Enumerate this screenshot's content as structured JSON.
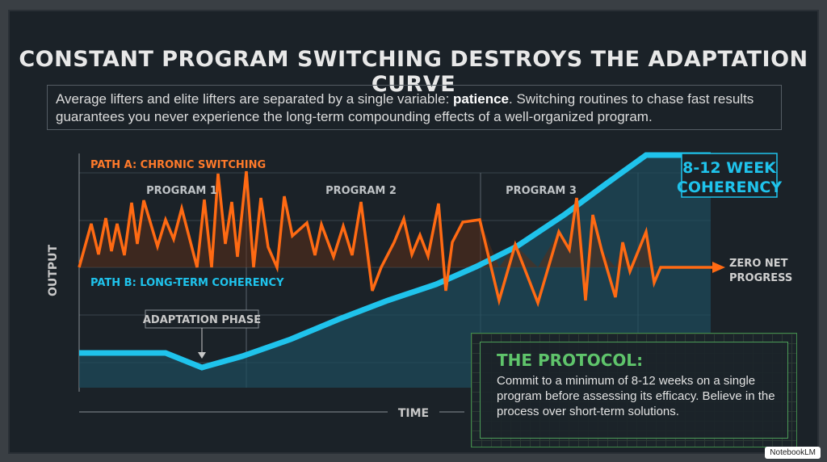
{
  "title": "CONSTANT PROGRAM SWITCHING DESTROYS THE ADAPTATION CURVE",
  "intro": {
    "before": "Average lifters and elite lifters are separated by a single variable: ",
    "bold": "patience",
    "after": ". Switching routines to chase fast results guarantees you never experience the long-term compounding effects of a well-organized program."
  },
  "diagram": {
    "y_axis": "OUTPUT",
    "x_axis": "TIME",
    "path_a": "PATH A: CHRONIC SWITCHING",
    "path_b": "PATH B: LONG-TERM COHERENCY",
    "programs": [
      "PROGRAM 1",
      "PROGRAM 2",
      "PROGRAM 3"
    ],
    "adaptation": "ADAPTATION PHASE",
    "coherency": [
      "8-12 WEEK",
      "COHERENCY"
    ],
    "zero": [
      "ZERO NET",
      "PROGRESS"
    ],
    "colors": {
      "path_a": "#ff6a13",
      "path_b": "#1fc3ec",
      "protocol": "#5fc46b"
    }
  },
  "protocol": {
    "heading": "THE PROTOCOL:",
    "text": "Commit to a minimum of 8-12 weeks on a single program before assessing its efficacy. Believe in the process over short-term solutions."
  },
  "watermark": "NotebookLM"
}
